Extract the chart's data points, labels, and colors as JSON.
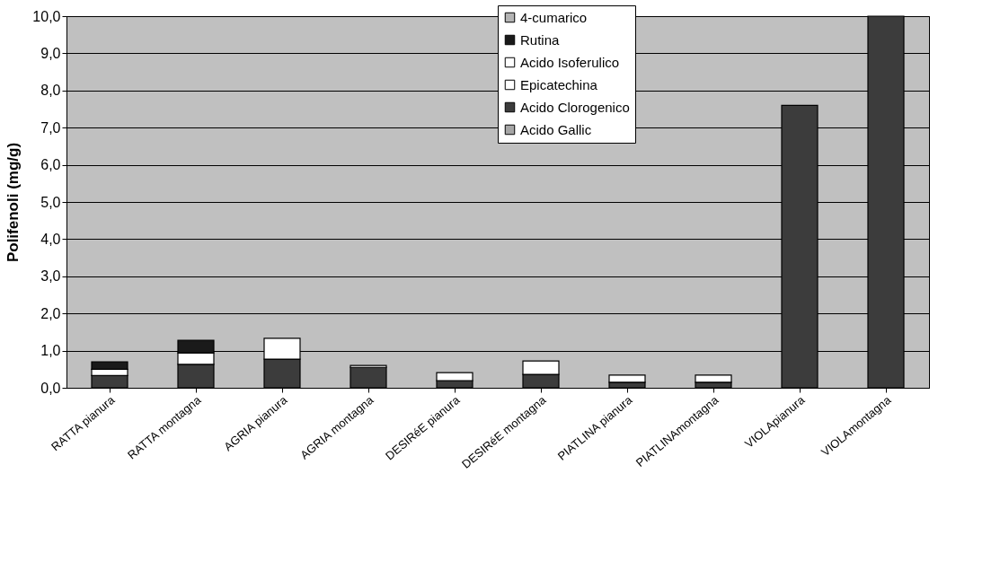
{
  "chart_data": {
    "type": "bar",
    "stacked": true,
    "ylabel": "Polifenoli (mg/g)",
    "categories": [
      "RATTA pianura",
      "RATTA montagna",
      "AGRIA pianura",
      "AGRIA montagna",
      "DESIRéE pianura",
      "DESIRéE montagna",
      "PIATLINA pianura",
      "PIATLINAmontagna",
      "VIOLApianura",
      "VIOLAmontagna"
    ],
    "series": [
      {
        "name": "Acido Gallic",
        "color": "#a6a6a6",
        "values": [
          null,
          null,
          null,
          null,
          null,
          null,
          null,
          null,
          null,
          null
        ]
      },
      {
        "name": "Acido Clorogenico",
        "color": "#3c3c3c",
        "values": [
          0.33,
          0.63,
          0.77,
          0.55,
          0.19,
          0.36,
          0.15,
          0.15,
          7.6,
          10.0
        ]
      },
      {
        "name": "Epicatechina",
        "color": "#ffffff",
        "values": [
          0.17,
          0.31,
          0.56,
          0.05,
          0.22,
          0.36,
          0.19,
          0.19,
          null,
          null
        ]
      },
      {
        "name": "Acido Isoferulico",
        "color": "#fefefe",
        "values": [
          null,
          null,
          null,
          null,
          null,
          null,
          null,
          null,
          null,
          null
        ]
      },
      {
        "name": "Rutina",
        "color": "#1a1a1a",
        "values": [
          0.2,
          0.34,
          null,
          null,
          null,
          null,
          null,
          null,
          null,
          null
        ]
      },
      {
        "name": "4-cumarico",
        "color": "#b4b4b4",
        "values": [
          null,
          null,
          null,
          null,
          null,
          null,
          null,
          null,
          null,
          null
        ]
      }
    ],
    "ylim": [
      0,
      10
    ],
    "yticks": [
      {
        "value": 0,
        "label": "0,0"
      },
      {
        "value": 1,
        "label": "1,0"
      },
      {
        "value": 2,
        "label": "2,0"
      },
      {
        "value": 3,
        "label": "3,0"
      },
      {
        "value": 4,
        "label": "4,0"
      },
      {
        "value": 5,
        "label": "5,0"
      },
      {
        "value": 6,
        "label": "6,0"
      },
      {
        "value": 7,
        "label": "7,0"
      },
      {
        "value": 8,
        "label": "8,0"
      },
      {
        "value": 9,
        "label": "9,0"
      },
      {
        "value": 10,
        "label": "10,0"
      }
    ],
    "grid": "y",
    "legend": "top"
  }
}
